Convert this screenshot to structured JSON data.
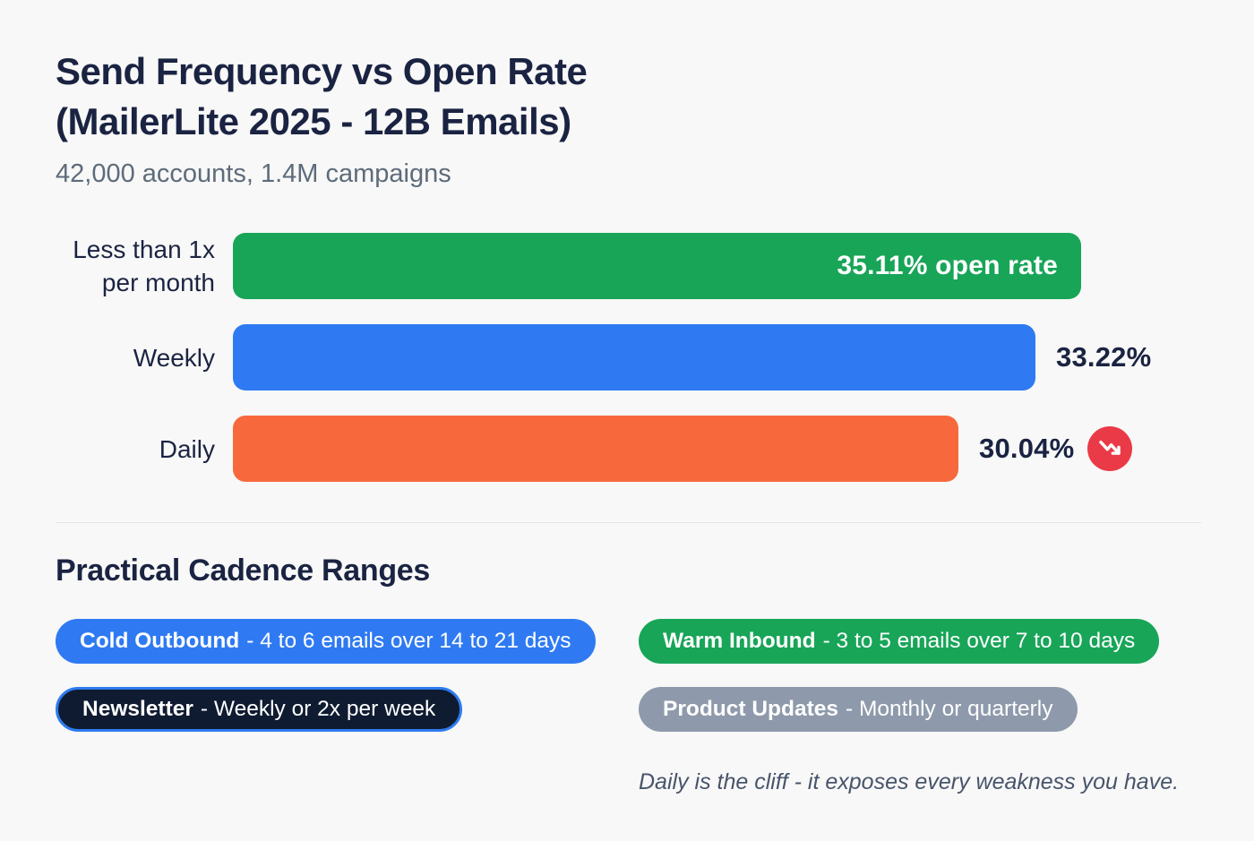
{
  "header": {
    "title_line1": "Send Frequency vs Open Rate",
    "title_line2": "(MailerLite 2025 - 12B Emails)",
    "subtitle": "42,000 accounts, 1.4M campaigns"
  },
  "chart_data": {
    "type": "bar",
    "orientation": "horizontal",
    "title": "Send Frequency vs Open Rate (MailerLite 2025 - 12B Emails)",
    "subtitle": "42,000 accounts, 1.4M campaigns",
    "categories": [
      "Less than 1x per month",
      "Weekly",
      "Daily"
    ],
    "values": [
      35.11,
      33.22,
      30.04
    ],
    "value_labels": [
      "35.11% open rate",
      "33.22%",
      "30.04%"
    ],
    "value_label_position": [
      "inside-end",
      "outside-end",
      "outside-end"
    ],
    "bar_colors": [
      "#18a558",
      "#2f7af2",
      "#f7693c"
    ],
    "xlim": [
      0,
      40
    ],
    "grid": false,
    "legend": false,
    "annotations": [
      {
        "category": "Daily",
        "icon": "trending-down-icon",
        "color": "#ea3a48"
      }
    ]
  },
  "cadence": {
    "heading": "Practical Cadence Ranges",
    "pills": [
      {
        "label": "Cold Outbound",
        "detail": "- 4 to 6 emails over 14 to 21 days",
        "bg": "#2f7af2"
      },
      {
        "label": "Warm Inbound",
        "detail": "- 3 to 5 emails over 7 to 10 days",
        "bg": "#18a558"
      },
      {
        "label": "Newsletter",
        "detail": "- Weekly or 2x per week",
        "bg": "#0f1b31",
        "border": "#2e7bf0"
      },
      {
        "label": "Product Updates",
        "detail": "- Monthly or quarterly",
        "bg": "#8e9aab"
      }
    ],
    "note": "Daily is the cliff - it exposes every weakness you have."
  },
  "colors": {
    "background": "#f7f8f7",
    "heading_text": "#1b2342",
    "subtitle_text": "#5e6b7b",
    "bar_green": "#18a558",
    "bar_blue": "#2f7af2",
    "bar_orange": "#f7693c",
    "trend_badge_red": "#ea3a48",
    "note_text": "#49546b",
    "divider": "#e2e5e8"
  }
}
